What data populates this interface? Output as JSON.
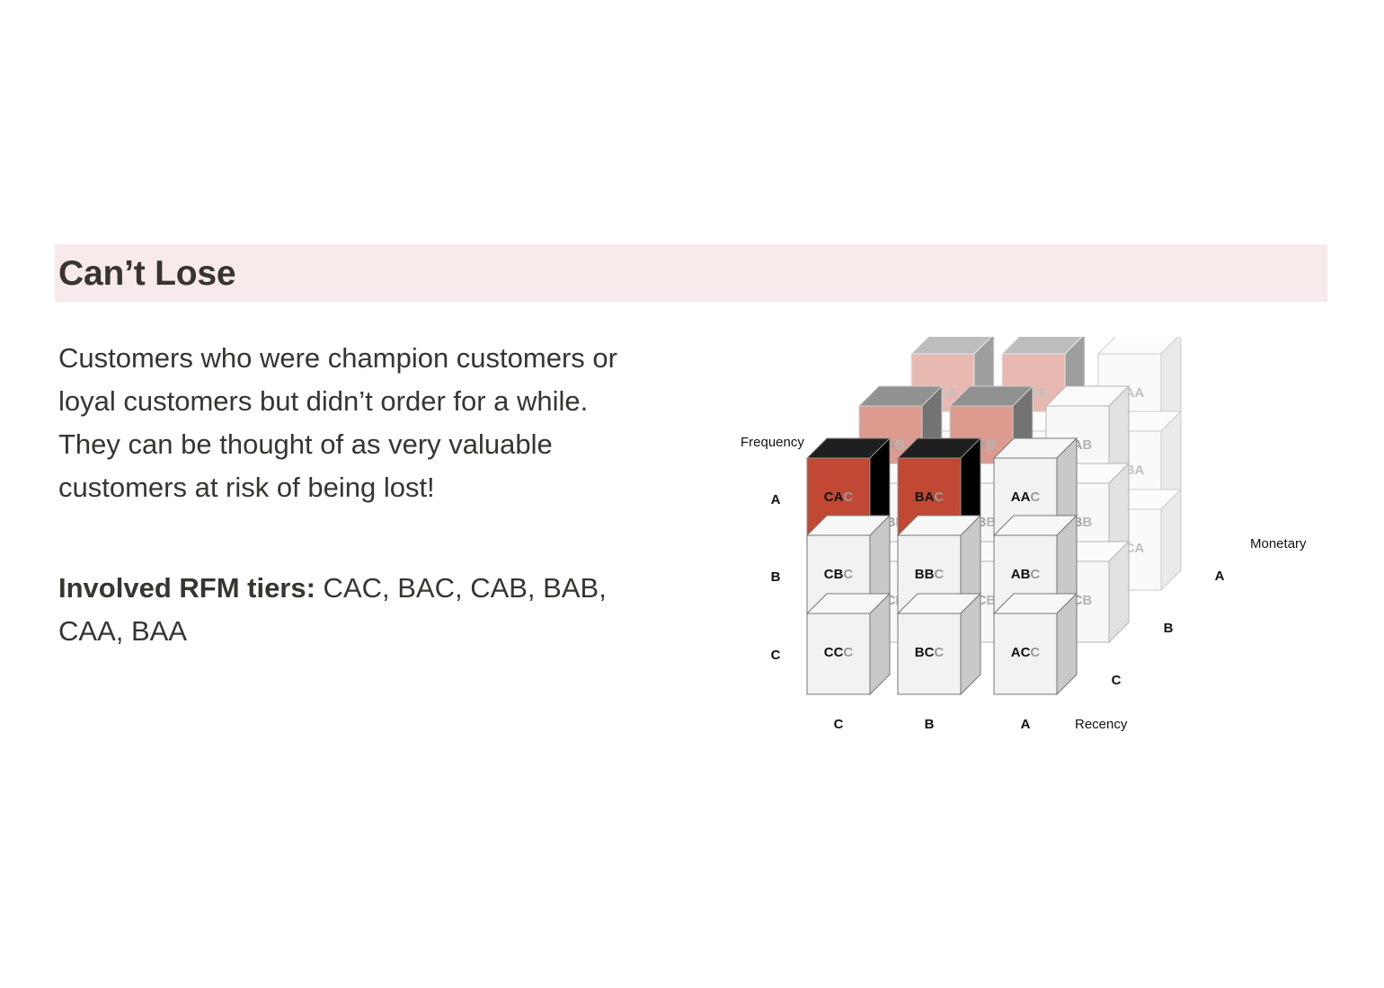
{
  "section": {
    "title": "Can’t Lose",
    "description": "Customers who were champion customers or loyal customers but didn’t order for a while. They can be thought of as very valuable customers at risk of being lost!",
    "tiers_label": "Involved RFM tiers:",
    "tiers_value": " CAC, BAC, CAB, BAB, CAA, BAA"
  },
  "diagram": {
    "frequency_label": "Frequency",
    "recency_label": "Recency",
    "monetary_label": "Monetary",
    "frequency_ticks": [
      "A",
      "B",
      "C"
    ],
    "recency_ticks": [
      "C",
      "B",
      "A"
    ],
    "monetary_ticks": [
      "A",
      "B",
      "C"
    ],
    "highlighted_tiers": [
      "CAC",
      "BAC",
      "CAB",
      "BAB",
      "CAA",
      "BAA"
    ],
    "colors": {
      "highlight": "#c14832",
      "neutral": "#f2f2f2",
      "page_text": "#37352f",
      "header_band": "#f8eaea"
    }
  }
}
